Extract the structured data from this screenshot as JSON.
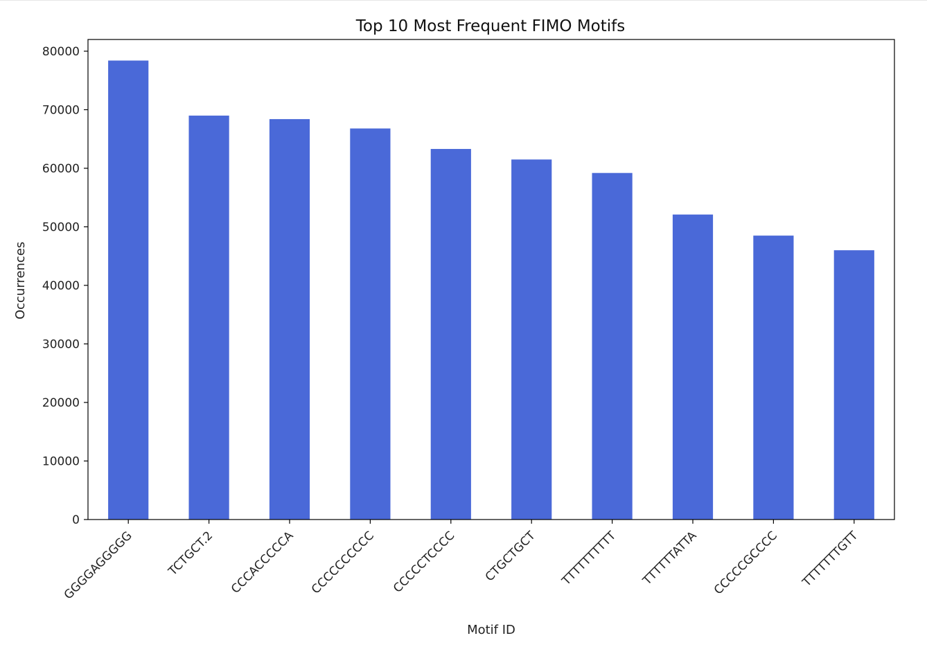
{
  "chart_data": {
    "type": "bar",
    "title": "Top 10 Most Frequent FIMO Motifs",
    "xlabel": "Motif ID",
    "ylabel": "Occurrences",
    "categories": [
      "GGGGAGGGGG",
      "TCTGCT.2",
      "CCCACCCCCA",
      "CCCCCCCCCC",
      "CCCCCTCCCC",
      "CTGCTGCT",
      "TTTTTTTTTT",
      "TTTTTTATTA",
      "CCCCCGCCCC",
      "TTTTTTTGTT"
    ],
    "values": [
      78400,
      69000,
      68400,
      66800,
      63300,
      61500,
      59200,
      52100,
      48500,
      46000
    ],
    "ylim": [
      0,
      82000
    ],
    "yticks": [
      0,
      10000,
      20000,
      30000,
      40000,
      50000,
      60000,
      70000,
      80000
    ],
    "grid": false,
    "bar_color": "#4a69d8"
  }
}
